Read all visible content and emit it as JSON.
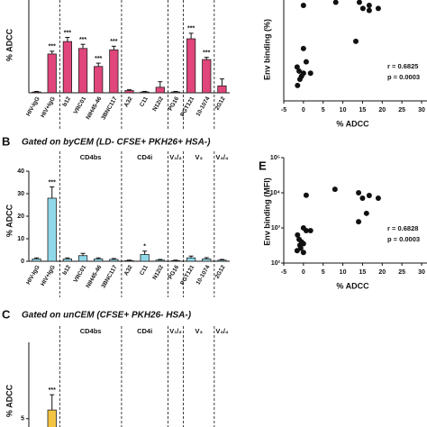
{
  "chart_data": [
    {
      "type": "bar",
      "y_label": "% ADCC",
      "color": "#e0457b",
      "categories": [
        "HIV-IgG",
        "HIV+IgG",
        "b12",
        "VRC01",
        "NIH45-46",
        "3BNC117",
        "A32",
        "C11",
        "N12i2",
        "PG16",
        "PGT121",
        "10-1074",
        "2G12"
      ],
      "values": [
        0.3,
        14,
        18.5,
        16,
        9.5,
        15.5,
        0.8,
        0.3,
        2,
        0.3,
        19.5,
        12,
        2.5
      ],
      "errors": [
        0.2,
        1,
        1.5,
        1.5,
        1.2,
        1.3,
        0.3,
        0.2,
        2,
        0.2,
        2,
        0.8,
        2.5
      ],
      "significance": [
        null,
        "***",
        "***",
        "***",
        "***",
        "***",
        null,
        null,
        null,
        null,
        "***",
        "***",
        null
      ],
      "ylim": [
        0,
        40
      ]
    },
    {
      "type": "bar",
      "panel": "B",
      "title": "Gated on byCEM (LD- CFSE+ PKH26+ HSA-)",
      "y_label": "% ADCC",
      "color": "#8fd8ea",
      "groups": [
        "CD4bs",
        "CD4i",
        "V₁/₂",
        "V₃",
        "V₃/₄"
      ],
      "categories": [
        "HIV-IgG",
        "HIV+IgG",
        "b12",
        "VRC01",
        "NIH45-46",
        "3BNC117",
        "A32",
        "C11",
        "N12i2",
        "PG16",
        "PGT121",
        "10-1074",
        "2G12"
      ],
      "values": [
        1,
        28,
        1,
        2.5,
        1,
        0.8,
        0.3,
        3,
        0.5,
        0.3,
        1.5,
        1,
        0.5
      ],
      "errors": [
        0.5,
        5,
        0.5,
        1,
        0.5,
        0.4,
        0.2,
        1.5,
        0.3,
        0.2,
        0.8,
        0.6,
        0.3
      ],
      "significance": [
        null,
        "***",
        null,
        null,
        null,
        null,
        null,
        "*",
        null,
        null,
        null,
        null,
        null
      ],
      "ylim": [
        0,
        40
      ],
      "yticks": [
        0,
        10,
        20,
        30,
        40
      ]
    },
    {
      "type": "bar",
      "panel": "C",
      "title": "Gated on unCEM (CFSE+ PKH26- HSA-)",
      "y_label": "% ADCC",
      "color": "#f4c542",
      "groups": [
        "CD4bs",
        "CD4i",
        "V₁/₂",
        "V₃",
        "V₃/₄"
      ],
      "categories": [
        null,
        null,
        null,
        null,
        null,
        null,
        null,
        null,
        null,
        null,
        null,
        null,
        null
      ],
      "values": [
        0.3,
        6.7,
        0.3,
        0.3,
        0.3,
        0.3,
        0.2,
        0.3,
        0.2,
        0.2,
        0.5,
        0.3,
        0.2
      ],
      "errors": [
        0.2,
        3,
        0.2,
        0.2,
        0.2,
        0.2,
        0.1,
        0.2,
        0.1,
        0.1,
        0.3,
        0.2,
        0.1
      ],
      "significance": [
        null,
        "***",
        null,
        null,
        null,
        null,
        null,
        null,
        null,
        null,
        null,
        null,
        null
      ],
      "ylim": [
        0,
        20
      ],
      "yticks": [
        5
      ]
    },
    {
      "type": "scatter",
      "y_label": "Env binding (%)",
      "x_label": "% ADCC",
      "color": "#111111",
      "x": [
        0,
        8.2,
        14.2,
        15.1,
        16.7,
        16.7,
        19,
        13.3,
        -1.6,
        -1.1,
        -0.5,
        -0.9,
        0,
        0.7,
        1.8,
        0,
        -1.5
      ],
      "y": [
        93,
        96,
        96,
        90,
        88,
        93,
        90,
        58,
        33,
        29,
        24,
        21,
        27,
        38,
        27,
        51,
        15
      ],
      "stats": [
        "r = 0.6825",
        "p = 0.0003"
      ],
      "xlim": [
        -5,
        30
      ],
      "xticks": [
        -5,
        0,
        5,
        10,
        15,
        20,
        25,
        30
      ],
      "ylim": [
        0,
        100
      ]
    },
    {
      "type": "scatter",
      "panel": "E",
      "y_label": "Env binding (MFI)",
      "x_label": "% ADCC",
      "color": "#111111",
      "log_y": true,
      "x": [
        0.7,
        8,
        14,
        15,
        16.7,
        16,
        14,
        19,
        -1.5,
        -1.1,
        -0.5,
        -0.9,
        0,
        -0.7,
        -1.6,
        0.7,
        0,
        1.8,
        0
      ],
      "y": [
        8500,
        12600,
        10000,
        7000,
        8400,
        2600,
        1500,
        7000,
        630,
        470,
        400,
        320,
        355,
        265,
        225,
        840,
        1000,
        840,
        200
      ],
      "stats": [
        "r = 0.6828",
        "p = 0.0003"
      ],
      "xlim": [
        -5,
        30
      ],
      "xticks": [
        -5,
        0,
        5,
        10,
        15,
        20,
        25,
        30
      ],
      "ylim": [
        100,
        100000
      ],
      "yticks": [
        {
          "value": 100,
          "label": "10²"
        },
        {
          "value": 1000,
          "label": "10³"
        },
        {
          "value": 10000,
          "label": "10⁴"
        },
        {
          "value": 100000,
          "label": "10⁵"
        }
      ]
    }
  ]
}
